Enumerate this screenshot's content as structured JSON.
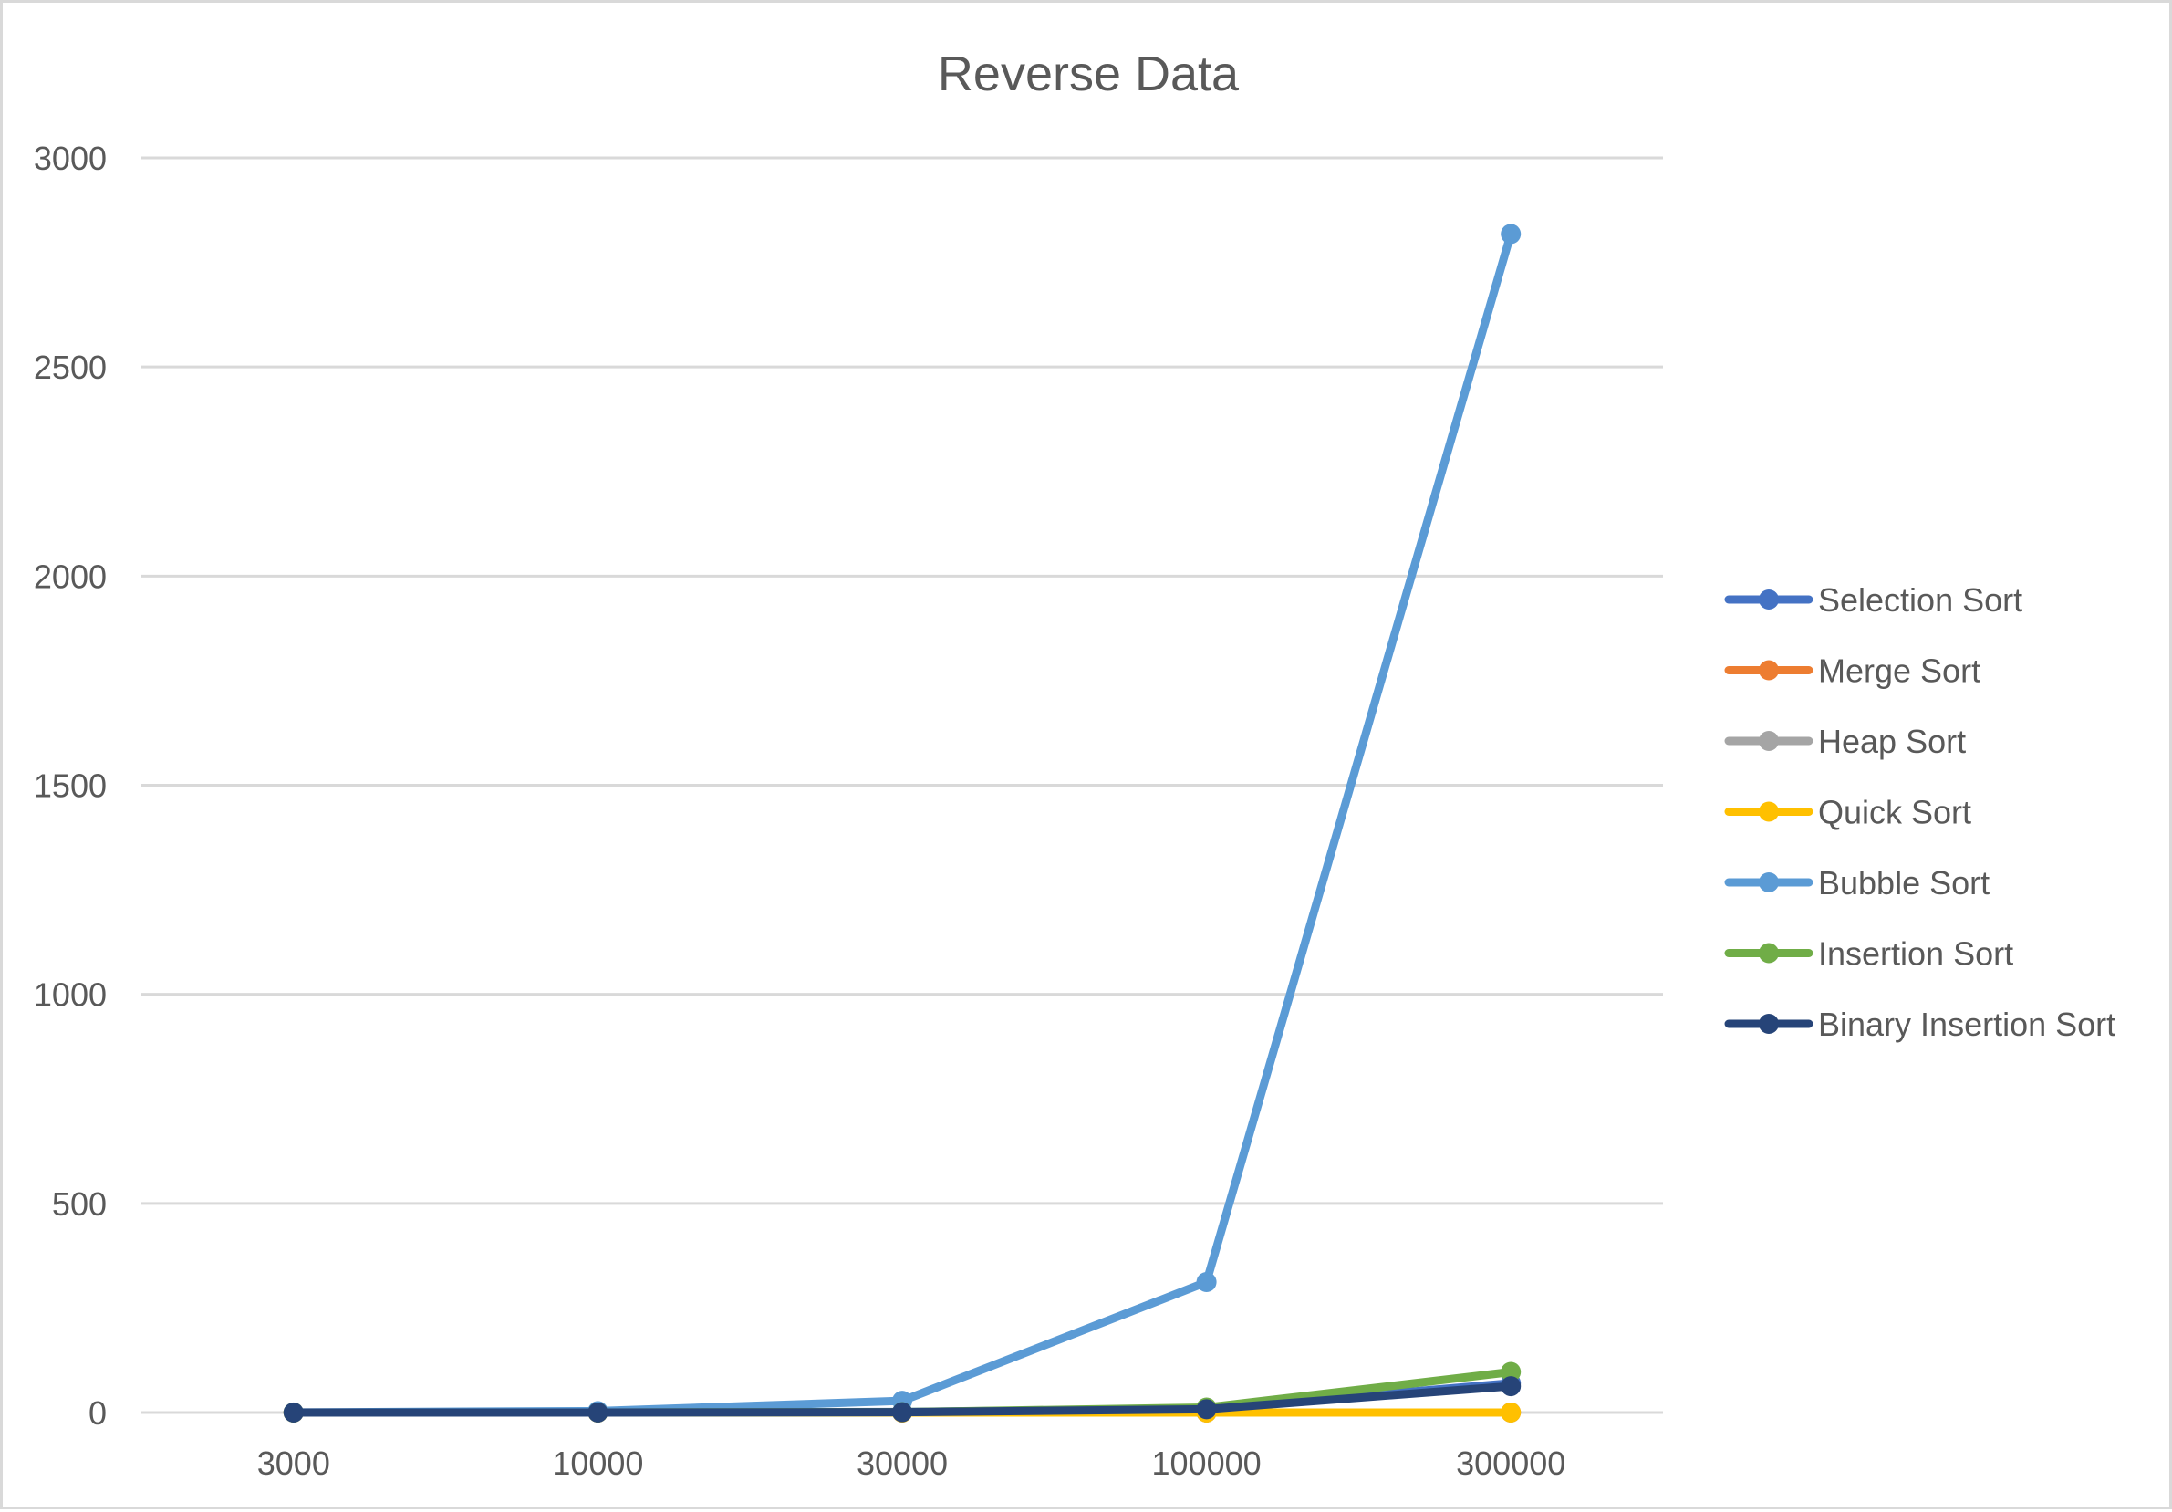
{
  "chart_data": {
    "type": "line",
    "title": "Reverse Data",
    "xlabel": "",
    "ylabel": "",
    "categories": [
      "3000",
      "10000",
      "30000",
      "100000",
      "300000"
    ],
    "ylim": [
      0,
      3000
    ],
    "yticks": [
      0,
      500,
      1000,
      1500,
      2000,
      2500,
      3000
    ],
    "grid": true,
    "legend_position": "right",
    "series": [
      {
        "name": "Selection Sort",
        "color": "#4472C4",
        "values": [
          0.02,
          0.2,
          1.5,
          9,
          70
        ]
      },
      {
        "name": "Merge Sort",
        "color": "#ED7D31",
        "values": [
          0.001,
          0.003,
          0.01,
          0.03,
          0.1
        ]
      },
      {
        "name": "Heap Sort",
        "color": "#A5A5A5",
        "values": [
          0.001,
          0.003,
          0.01,
          0.04,
          0.12
        ]
      },
      {
        "name": "Quick Sort",
        "color": "#FFC000",
        "values": [
          0.001,
          0.002,
          0.005,
          0.02,
          0.06
        ]
      },
      {
        "name": "Bubble Sort",
        "color": "#5B9BD5",
        "values": [
          0.3,
          3.5,
          28,
          312,
          2818
        ]
      },
      {
        "name": "Insertion Sort",
        "color": "#70AD47",
        "values": [
          0.02,
          0.13,
          1.1,
          12,
          97
        ]
      },
      {
        "name": "Binary Insertion Sort",
        "color": "#264478",
        "values": [
          0.01,
          0.08,
          0.8,
          8,
          63
        ]
      }
    ]
  }
}
